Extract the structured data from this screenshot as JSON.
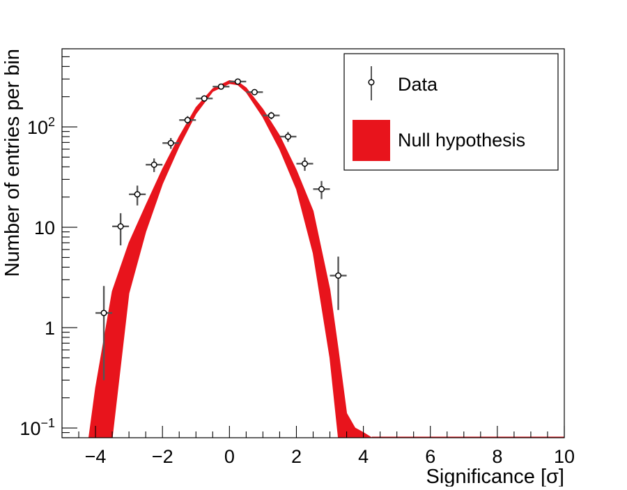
{
  "chart_data": {
    "type": "scatter",
    "xlabel": "Significance [σ]",
    "ylabel": "Number of entries per bin",
    "x_range": [
      -5,
      10
    ],
    "y_range": [
      0.08,
      600
    ],
    "y_scale": "log",
    "x_ticks": [
      -4,
      -2,
      0,
      2,
      4,
      6,
      8,
      10
    ],
    "x_tick_labels": [
      "−4",
      "−2",
      "0",
      "2",
      "4",
      "6",
      "8",
      "10"
    ],
    "y_ticks": [
      {
        "value": 0.1,
        "label": "10",
        "exp": "−1"
      },
      {
        "value": 1,
        "label": "1",
        "exp": ""
      },
      {
        "value": 10,
        "label": "10",
        "exp": ""
      },
      {
        "value": 100,
        "label": "10",
        "exp": "2"
      }
    ],
    "legend": {
      "position": "top-right",
      "entries": [
        {
          "label": "Data",
          "kind": "marker"
        },
        {
          "label": "Null hypothesis",
          "kind": "band"
        }
      ]
    },
    "colors": {
      "band": "#e8141c",
      "data": "#000000",
      "errorbar": "#555555"
    },
    "series": [
      {
        "name": "Data",
        "kind": "points_with_errors",
        "x_halfwidth": 0.25,
        "points": [
          {
            "x": -3.75,
            "y": 1.4,
            "ylo": 0.3,
            "yhi": 2.6
          },
          {
            "x": -3.25,
            "y": 10.2,
            "ylo": 6.6,
            "yhi": 13.8
          },
          {
            "x": -2.75,
            "y": 21.3,
            "ylo": 16.5,
            "yhi": 26.0
          },
          {
            "x": -2.25,
            "y": 42.0,
            "ylo": 35.5,
            "yhi": 48.5
          },
          {
            "x": -1.75,
            "y": 69.0,
            "ylo": 60.5,
            "yhi": 77.5
          },
          {
            "x": -1.25,
            "y": 117.0,
            "ylo": 106.0,
            "yhi": 128.0
          },
          {
            "x": -0.75,
            "y": 192.0,
            "ylo": 178.0,
            "yhi": 206.0
          },
          {
            "x": -0.25,
            "y": 252.0,
            "ylo": 236.0,
            "yhi": 268.0
          },
          {
            "x": 0.25,
            "y": 283.0,
            "ylo": 266.0,
            "yhi": 300.0
          },
          {
            "x": 0.75,
            "y": 222.0,
            "ylo": 207.0,
            "yhi": 237.0
          },
          {
            "x": 1.25,
            "y": 130.0,
            "ylo": 119.0,
            "yhi": 141.0
          },
          {
            "x": 1.75,
            "y": 80.0,
            "ylo": 71.0,
            "yhi": 89.0
          },
          {
            "x": 2.25,
            "y": 43.0,
            "ylo": 36.5,
            "yhi": 49.5
          },
          {
            "x": 2.75,
            "y": 24.0,
            "ylo": 19.1,
            "yhi": 28.9
          },
          {
            "x": 3.25,
            "y": 3.3,
            "ylo": 1.5,
            "yhi": 5.1
          }
        ]
      },
      {
        "name": "Null hypothesis",
        "kind": "band",
        "x": [
          -4.2,
          -4.0,
          -3.5,
          -3.0,
          -2.5,
          -2.0,
          -1.5,
          -1.0,
          -0.5,
          0.0,
          0.25,
          0.5,
          1.0,
          1.5,
          2.0,
          2.5,
          3.0,
          3.25,
          3.5,
          3.75,
          4.0,
          4.25
        ],
        "upper": [
          0.08,
          0.25,
          2.3,
          7.0,
          16.5,
          38.0,
          80.0,
          156.0,
          240.0,
          290.0,
          282.0,
          245.0,
          150.0,
          82.0,
          37.0,
          14.5,
          2.4,
          0.6,
          0.14,
          0.1,
          0.09,
          0.08
        ],
        "lower": [
          0.08,
          0.08,
          0.08,
          2.2,
          9.0,
          27.0,
          64.0,
          135.0,
          225.0,
          270.0,
          262.0,
          222.0,
          125.0,
          60.0,
          24.0,
          5.5,
          0.5,
          0.08,
          0.08,
          0.08,
          0.08,
          0.08
        ]
      }
    ]
  }
}
